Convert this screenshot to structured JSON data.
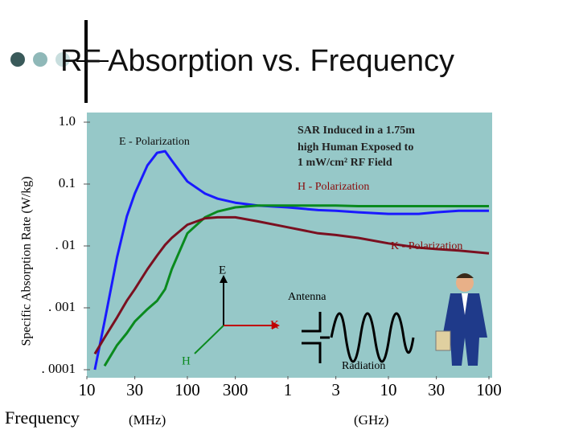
{
  "chart_data": {
    "type": "line",
    "title": "RF Absorption vs. Frequency",
    "y_label": "Specific Absorption Rate (W/kg)",
    "x_label": "Frequency",
    "x_unit_left": "(MHz)",
    "x_unit_right": "(GHz)",
    "log_x": true,
    "log_y": true,
    "xlim": [
      10,
      100000
    ],
    "ylim": [
      0.0001,
      1
    ],
    "xticks": [
      10,
      30,
      100,
      300,
      {
        "value": 1000,
        "label": "1"
      },
      {
        "value": 3000,
        "label": "3"
      },
      {
        "value": 10000,
        "label": "10"
      },
      {
        "value": 30000,
        "label": "30"
      },
      {
        "value": 100000,
        "label": "100"
      }
    ],
    "yticks": [
      {
        "value": 1,
        "label": "1.0"
      },
      0.1,
      {
        "value": 0.01,
        "label": ". 01"
      },
      {
        "value": 0.001,
        "label": ". 001"
      },
      {
        "value": 0.0001,
        "label": ". 0001"
      }
    ],
    "x": [
      12,
      15,
      20,
      25,
      30,
      40,
      50,
      60,
      70,
      100,
      150,
      200,
      300,
      500,
      1000,
      2000,
      3000,
      5000,
      10000,
      20000,
      30000,
      50000,
      100000
    ],
    "series": [
      {
        "name": "E - Polarization",
        "color": "#1a1aff",
        "values": [
          0.0001,
          0.0006,
          0.0066,
          0.03,
          0.07,
          0.2,
          0.32,
          0.34,
          0.24,
          0.11,
          0.07,
          0.058,
          0.05,
          0.045,
          0.042,
          0.038,
          0.037,
          0.035,
          0.033,
          0.033,
          0.035,
          0.037,
          0.037
        ]
      },
      {
        "name": "H - Polarization",
        "color": "#0a8a1e",
        "values": [
          null,
          0.000115,
          0.00025,
          0.00039,
          0.0006,
          0.00095,
          0.0013,
          0.002,
          0.0042,
          0.016,
          0.029,
          0.036,
          0.042,
          0.045,
          0.045,
          0.045,
          0.045,
          0.044,
          0.044,
          0.044,
          0.044,
          0.044,
          0.044
        ]
      },
      {
        "name": "K - Polarization",
        "color": "#7a1020",
        "values": [
          0.00018,
          0.00033,
          0.0007,
          0.0013,
          0.002,
          0.0042,
          0.007,
          0.0104,
          0.0135,
          0.022,
          0.028,
          0.029,
          0.029,
          0.025,
          0.02,
          0.016,
          0.015,
          0.0135,
          0.011,
          0.0094,
          0.0089,
          0.0084,
          0.0076
        ]
      }
    ],
    "annotations": [
      "SAR Induced in a 1.75m",
      "high Human Exposed to",
      "1 mW/cm² RF Field"
    ],
    "diagram_labels": {
      "e": "E",
      "k": "K",
      "h": "H",
      "antenna": "Antenna",
      "radiation": "Radiation"
    }
  }
}
